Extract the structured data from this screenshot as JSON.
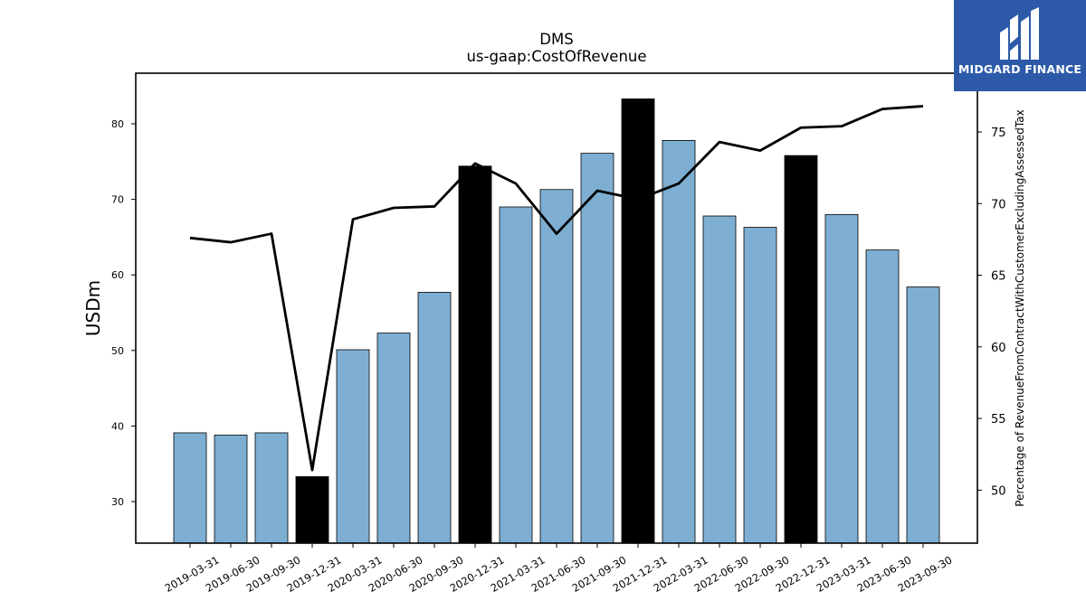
{
  "chart_data": {
    "type": "bar",
    "title": "DMS",
    "subtitle": "us-gaap:CostOfRevenue",
    "ylabel": "USDm",
    "y2label": "Percentage of RevenueFromContractWithCustomerExcludingAssessedTax",
    "ylim": [
      24.5,
      86.7
    ],
    "y2lim": [
      46.3,
      79.1
    ],
    "yticks": [
      30,
      40,
      50,
      60,
      70,
      80
    ],
    "y2ticks": [
      50,
      55,
      60,
      65,
      70,
      75
    ],
    "categories": [
      "2019-03-31",
      "2019-06-30",
      "2019-09-30",
      "2019-12-31",
      "2020-03-31",
      "2020-06-30",
      "2020-09-30",
      "2020-12-31",
      "2021-03-31",
      "2021-06-30",
      "2021-09-30",
      "2021-12-31",
      "2022-03-31",
      "2022-06-30",
      "2022-09-30",
      "2022-12-31",
      "2023-03-31",
      "2023-06-30",
      "2023-09-30"
    ],
    "series": [
      {
        "values": [
          39.1,
          38.8,
          39.1,
          33.3,
          50.1,
          52.3,
          57.7,
          74.4,
          69.0,
          71.3,
          76.1,
          83.3,
          77.8,
          67.8,
          66.3,
          75.8,
          68.0,
          63.3,
          58.4
        ],
        "highlight": [
          false,
          false,
          false,
          true,
          false,
          false,
          false,
          true,
          false,
          false,
          false,
          true,
          false,
          false,
          false,
          true,
          false,
          false,
          false
        ],
        "color": "#7eafd3",
        "highlight_color": "#000000"
      },
      {
        "axis": "right",
        "type": "line",
        "color": "#000000",
        "values": [
          67.6,
          67.3,
          67.9,
          51.4,
          68.9,
          69.7,
          69.8,
          72.8,
          71.4,
          67.9,
          70.9,
          70.3,
          71.4,
          74.3,
          73.7,
          75.3,
          75.4,
          76.6,
          76.8
        ]
      }
    ]
  },
  "logo": {
    "text": "MIDGARD FINANCE"
  }
}
